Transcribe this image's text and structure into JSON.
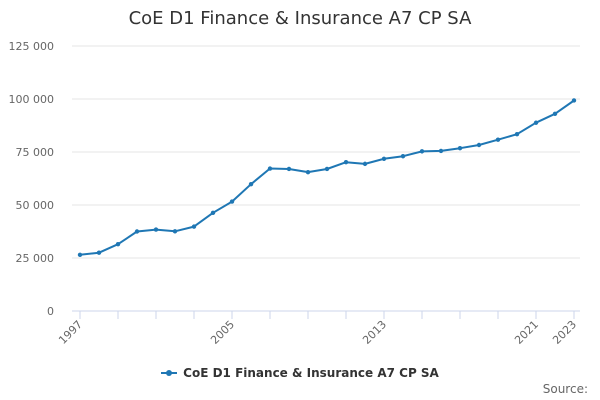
{
  "chart_data": {
    "type": "line",
    "title": "CoE D1 Finance & Insurance A7 CP SA",
    "xlabel": "",
    "ylabel": "",
    "x": [
      1997,
      1998,
      1999,
      2000,
      2001,
      2002,
      2003,
      2004,
      2005,
      2006,
      2007,
      2008,
      2009,
      2010,
      2011,
      2012,
      2013,
      2014,
      2015,
      2016,
      2017,
      2018,
      2019,
      2020,
      2021,
      2022,
      2023
    ],
    "series": [
      {
        "name": "CoE D1 Finance & Insurance A7 CP SA",
        "color": "#1f77b4",
        "values": [
          26500,
          27500,
          31500,
          37500,
          38400,
          37600,
          39800,
          46300,
          51600,
          59800,
          67200,
          67000,
          65500,
          67000,
          70200,
          69400,
          71800,
          73000,
          75300,
          75500,
          76800,
          78300,
          80800,
          83400,
          88800,
          93000,
          99300
        ]
      }
    ],
    "xticks": [
      "1997",
      "2005",
      "2013",
      "2021",
      "2023"
    ],
    "yticks": [
      "0",
      "25 000",
      "50 000",
      "75 000",
      "100 000",
      "125 000"
    ],
    "ylim": [
      0,
      125000
    ],
    "grid": true,
    "legend_position": "bottom-center"
  },
  "legend": {
    "label": "CoE D1 Finance & Insurance A7 CP SA"
  },
  "footer": {
    "source": "Source:"
  }
}
